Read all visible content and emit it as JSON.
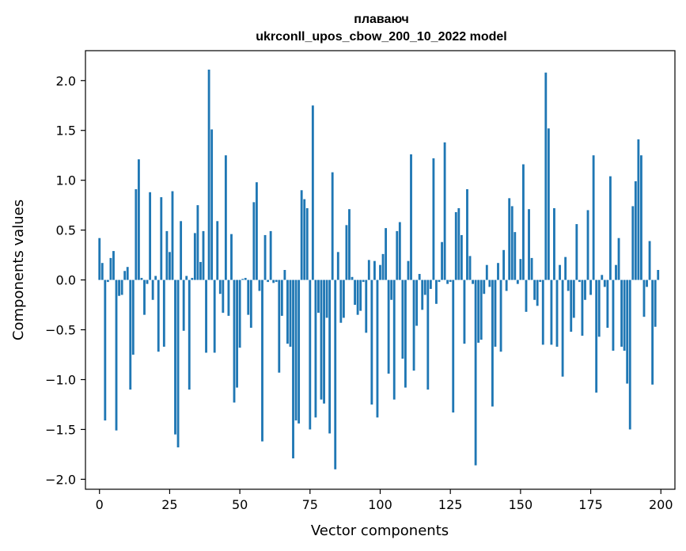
{
  "chart_data": {
    "type": "bar",
    "title": "плаваюч",
    "subtitle": "ukrconll_upos_cbow_200_10_2022 model",
    "xlabel": "Vector components",
    "ylabel": "Components values",
    "xlim": [
      -5,
      205
    ],
    "ylim": [
      -2.1,
      2.3
    ],
    "xticks": [
      0,
      25,
      50,
      75,
      100,
      125,
      150,
      175,
      200
    ],
    "xtick_labels": [
      "0",
      "25",
      "50",
      "75",
      "100",
      "125",
      "150",
      "175",
      "200"
    ],
    "yticks": [
      -2.0,
      -1.5,
      -1.0,
      -0.5,
      0.0,
      0.5,
      1.0,
      1.5,
      2.0
    ],
    "ytick_labels": [
      "−2.0",
      "−1.5",
      "−1.0",
      "−0.5",
      "0.0",
      "0.5",
      "1.0",
      "1.5",
      "2.0"
    ],
    "grid": false,
    "color": "#1f77b4",
    "x": [
      0,
      1,
      2,
      3,
      4,
      5,
      6,
      7,
      8,
      9,
      10,
      11,
      12,
      13,
      14,
      15,
      16,
      17,
      18,
      19,
      20,
      21,
      22,
      23,
      24,
      25,
      26,
      27,
      28,
      29,
      30,
      31,
      32,
      33,
      34,
      35,
      36,
      37,
      38,
      39,
      40,
      41,
      42,
      43,
      44,
      45,
      46,
      47,
      48,
      49,
      50,
      51,
      52,
      53,
      54,
      55,
      56,
      57,
      58,
      59,
      60,
      61,
      62,
      63,
      64,
      65,
      66,
      67,
      68,
      69,
      70,
      71,
      72,
      73,
      74,
      75,
      76,
      77,
      78,
      79,
      80,
      81,
      82,
      83,
      84,
      85,
      86,
      87,
      88,
      89,
      90,
      91,
      92,
      93,
      94,
      95,
      96,
      97,
      98,
      99,
      100,
      101,
      102,
      103,
      104,
      105,
      106,
      107,
      108,
      109,
      110,
      111,
      112,
      113,
      114,
      115,
      116,
      117,
      118,
      119,
      120,
      121,
      122,
      123,
      124,
      125,
      126,
      127,
      128,
      129,
      130,
      131,
      132,
      133,
      134,
      135,
      136,
      137,
      138,
      139,
      140,
      141,
      142,
      143,
      144,
      145,
      146,
      147,
      148,
      149,
      150,
      151,
      152,
      153,
      154,
      155,
      156,
      157,
      158,
      159,
      160,
      161,
      162,
      163,
      164,
      165,
      166,
      167,
      168,
      169,
      170,
      171,
      172,
      173,
      174,
      175,
      176,
      177,
      178,
      179,
      180,
      181,
      182,
      183,
      184,
      185,
      186,
      187,
      188,
      189,
      190,
      191,
      192,
      193,
      194,
      195,
      196,
      197,
      198,
      199
    ],
    "values": [
      0.42,
      0.17,
      -1.41,
      -0.02,
      0.22,
      0.29,
      -1.51,
      -0.16,
      -0.15,
      0.09,
      0.13,
      -1.1,
      -0.75,
      0.91,
      1.21,
      0.02,
      -0.35,
      -0.04,
      0.88,
      -0.2,
      0.04,
      -0.72,
      0.83,
      -0.67,
      0.49,
      0.28,
      0.89,
      -1.55,
      -1.68,
      0.59,
      -0.51,
      0.04,
      -1.1,
      0.02,
      0.47,
      0.75,
      0.18,
      0.49,
      -0.73,
      2.11,
      1.51,
      -0.73,
      0.59,
      -0.14,
      -0.33,
      1.25,
      -0.36,
      0.46,
      -1.23,
      -1.08,
      -0.68,
      0.01,
      0.02,
      -0.35,
      -0.48,
      0.78,
      0.98,
      -0.11,
      -1.62,
      0.45,
      -0.02,
      0.49,
      -0.03,
      -0.02,
      -0.93,
      -0.36,
      0.1,
      -0.64,
      -0.67,
      -1.79,
      -1.41,
      -1.44,
      0.9,
      0.81,
      0.72,
      -1.5,
      1.75,
      -1.38,
      -0.33,
      -1.2,
      -1.24,
      -0.38,
      -1.54,
      1.08,
      -1.9,
      0.28,
      -0.43,
      -0.38,
      0.55,
      0.71,
      0.03,
      -0.25,
      -0.35,
      -0.31,
      -0.02,
      -0.53,
      0.2,
      -1.25,
      0.19,
      -1.38,
      0.15,
      0.26,
      0.52,
      -0.94,
      -0.2,
      -1.2,
      0.49,
      0.58,
      -0.79,
      -1.08,
      0.19,
      1.26,
      -0.91,
      -0.46,
      0.06,
      -0.3,
      -0.15,
      -1.1,
      -0.09,
      1.22,
      -0.24,
      -0.02,
      0.38,
      1.38,
      -0.04,
      -0.02,
      -1.33,
      0.68,
      0.72,
      0.45,
      -0.64,
      0.91,
      0.24,
      -0.04,
      -1.86,
      -0.63,
      -0.6,
      -0.14,
      0.15,
      -0.07,
      -1.27,
      -0.67,
      0.17,
      -0.72,
      0.3,
      -0.11,
      0.82,
      0.74,
      0.48,
      -0.04,
      0.21,
      1.16,
      -0.32,
      0.71,
      0.22,
      -0.2,
      -0.26,
      -0.02,
      -0.65,
      2.08,
      1.52,
      -0.65,
      0.72,
      -0.67,
      0.15,
      -0.97,
      0.23,
      -0.11,
      -0.52,
      -0.38,
      0.56,
      -0.02,
      -0.56,
      -0.2,
      0.7,
      -0.15,
      1.25,
      -1.13,
      -0.57,
      0.05,
      -0.07,
      -0.48,
      1.04,
      -0.71,
      0.15,
      0.42,
      -0.67,
      -0.71,
      -1.04,
      -1.5,
      0.74,
      0.99,
      1.41,
      1.25,
      -0.37,
      -0.07,
      0.39,
      -1.05,
      -0.47,
      0.1
    ]
  }
}
